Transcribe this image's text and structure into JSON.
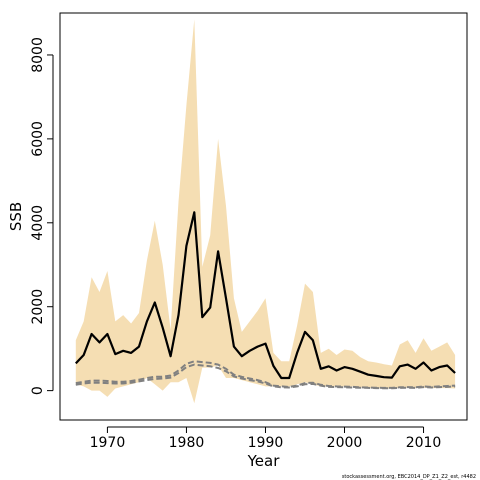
{
  "chart_data": {
    "type": "line",
    "title": "",
    "xlabel": "Year",
    "ylabel": "SSB",
    "xlim": [
      1964,
      2015.5
    ],
    "ylim": [
      -700,
      9000
    ],
    "x_ticks": [
      1970,
      1980,
      1990,
      2000,
      2010
    ],
    "y_ticks": [
      0,
      2000,
      4000,
      6000,
      8000
    ],
    "credit": "stockassessment.org, EBC2014_DP_Z1_Z2_est, r4482",
    "colors": {
      "band": "#f5deb3",
      "estimate": "#000000",
      "reference": "#808080"
    },
    "x": [
      1966,
      1967,
      1968,
      1969,
      1970,
      1971,
      1972,
      1973,
      1974,
      1975,
      1976,
      1977,
      1978,
      1979,
      1980,
      1981,
      1982,
      1983,
      1984,
      1985,
      1986,
      1987,
      1988,
      1989,
      1990,
      1991,
      1992,
      1993,
      1994,
      1995,
      1996,
      1997,
      1998,
      1999,
      2000,
      2001,
      2002,
      2003,
      2004,
      2005,
      2006,
      2007,
      2008,
      2009,
      2010,
      2011,
      2012,
      2013,
      2014
    ],
    "series": [
      {
        "role": "estimate",
        "style": "solid",
        "values": [
          650,
          850,
          1350,
          1150,
          1350,
          870,
          950,
          900,
          1050,
          1650,
          2100,
          1500,
          820,
          1800,
          3450,
          4250,
          1750,
          1980,
          3320,
          2200,
          1050,
          820,
          950,
          1050,
          1120,
          590,
          300,
          300,
          900,
          1400,
          1200,
          520,
          580,
          480,
          560,
          520,
          450,
          380,
          350,
          320,
          310,
          580,
          620,
          520,
          670,
          480,
          560,
          600,
          420
        ]
      },
      {
        "role": "upper",
        "style": "band-edge",
        "values": [
          1200,
          1650,
          2700,
          2350,
          2850,
          1650,
          1800,
          1600,
          1850,
          3100,
          4050,
          3000,
          1450,
          4500,
          6800,
          8850,
          2950,
          3700,
          6000,
          4400,
          2200,
          1400,
          1650,
          1900,
          2200,
          900,
          700,
          700,
          1550,
          2550,
          2350,
          900,
          1000,
          850,
          980,
          950,
          800,
          700,
          670,
          630,
          600,
          1100,
          1200,
          900,
          1250,
          950,
          1050,
          1150,
          850
        ]
      },
      {
        "role": "lower",
        "style": "band-edge",
        "values": [
          150,
          100,
          0,
          0,
          -150,
          50,
          100,
          150,
          200,
          300,
          150,
          0,
          200,
          200,
          300,
          -300,
          550,
          550,
          600,
          300,
          300,
          250,
          200,
          150,
          100,
          100,
          100,
          100,
          150,
          200,
          150,
          100,
          100,
          100,
          100,
          100,
          80,
          70,
          60,
          50,
          50,
          70,
          70,
          60,
          70,
          60,
          60,
          60,
          50
        ]
      },
      {
        "role": "reference-upper",
        "style": "dashed",
        "values": [
          180,
          210,
          240,
          240,
          230,
          210,
          210,
          230,
          260,
          300,
          330,
          330,
          360,
          480,
          640,
          700,
          680,
          660,
          620,
          520,
          380,
          330,
          290,
          250,
          200,
          120,
          100,
          90,
          120,
          180,
          190,
          140,
          110,
          100,
          95,
          90,
          80,
          75,
          70,
          65,
          65,
          80,
          85,
          80,
          100,
          90,
          100,
          110,
          120
        ]
      },
      {
        "role": "reference-lower",
        "style": "dashed",
        "values": [
          140,
          170,
          190,
          190,
          180,
          170,
          170,
          190,
          220,
          250,
          280,
          290,
          310,
          420,
          560,
          620,
          600,
          580,
          540,
          460,
          340,
          290,
          250,
          220,
          170,
          100,
          80,
          75,
          100,
          150,
          160,
          120,
          90,
          85,
          80,
          75,
          70,
          65,
          60,
          55,
          55,
          65,
          70,
          65,
          85,
          75,
          85,
          90,
          100
        ]
      }
    ]
  }
}
